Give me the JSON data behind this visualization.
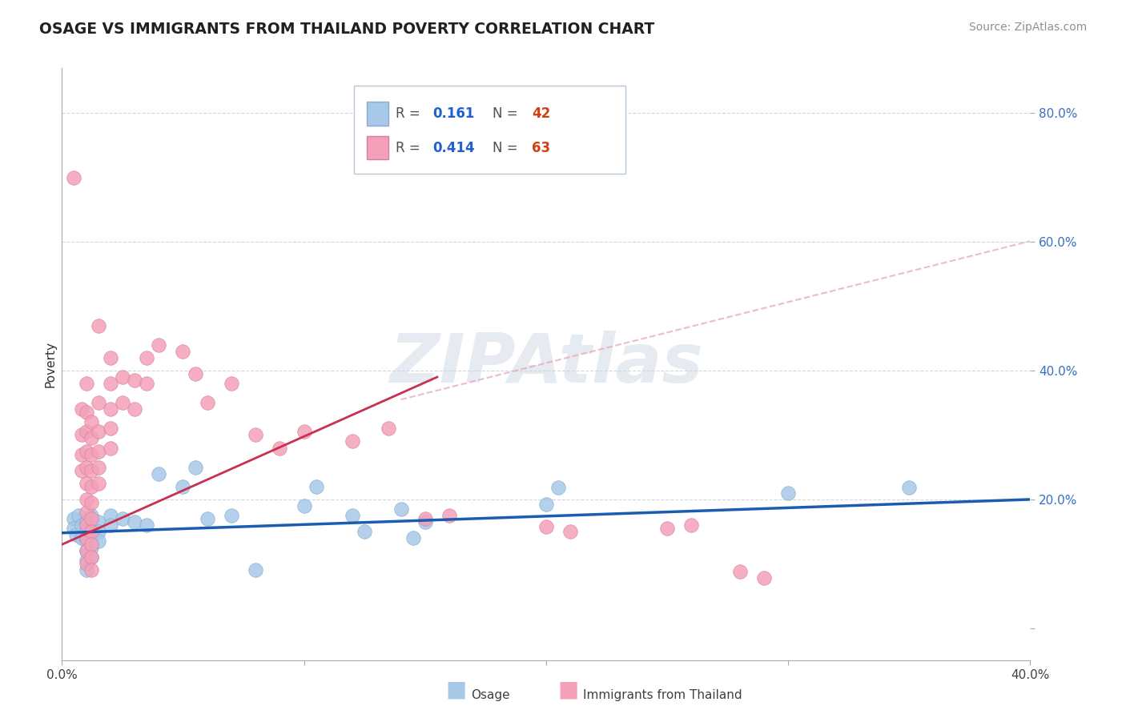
{
  "title": "OSAGE VS IMMIGRANTS FROM THAILAND POVERTY CORRELATION CHART",
  "source": "Source: ZipAtlas.com",
  "ylabel": "Poverty",
  "xlim": [
    0.0,
    0.4
  ],
  "ylim": [
    -0.05,
    0.87
  ],
  "ytick_vals": [
    0.0,
    0.2,
    0.4,
    0.6,
    0.8
  ],
  "xtick_vals": [
    0.0,
    0.1,
    0.2,
    0.3,
    0.4
  ],
  "osage_R": 0.161,
  "osage_N": 42,
  "thailand_R": 0.414,
  "thailand_N": 63,
  "osage_color": "#a8c8e8",
  "thailand_color": "#f4a0b8",
  "osage_line_color": "#1a5cb0",
  "thailand_line_color": "#c83050",
  "grid_color": "#d0d8e0",
  "watermark_color": "#ccd8e4",
  "background_color": "#ffffff",
  "osage_points": [
    [
      0.005,
      0.17
    ],
    [
      0.007,
      0.175
    ],
    [
      0.005,
      0.155
    ],
    [
      0.006,
      0.145
    ],
    [
      0.008,
      0.16
    ],
    [
      0.008,
      0.14
    ],
    [
      0.01,
      0.165
    ],
    [
      0.01,
      0.15
    ],
    [
      0.01,
      0.135
    ],
    [
      0.01,
      0.12
    ],
    [
      0.01,
      0.105
    ],
    [
      0.01,
      0.09
    ],
    [
      0.012,
      0.175
    ],
    [
      0.012,
      0.155
    ],
    [
      0.012,
      0.14
    ],
    [
      0.012,
      0.125
    ],
    [
      0.012,
      0.11
    ],
    [
      0.015,
      0.165
    ],
    [
      0.015,
      0.15
    ],
    [
      0.015,
      0.135
    ],
    [
      0.02,
      0.175
    ],
    [
      0.02,
      0.16
    ],
    [
      0.025,
      0.17
    ],
    [
      0.03,
      0.165
    ],
    [
      0.035,
      0.16
    ],
    [
      0.04,
      0.24
    ],
    [
      0.05,
      0.22
    ],
    [
      0.055,
      0.25
    ],
    [
      0.06,
      0.17
    ],
    [
      0.07,
      0.175
    ],
    [
      0.08,
      0.09
    ],
    [
      0.1,
      0.19
    ],
    [
      0.105,
      0.22
    ],
    [
      0.12,
      0.175
    ],
    [
      0.125,
      0.15
    ],
    [
      0.14,
      0.185
    ],
    [
      0.145,
      0.14
    ],
    [
      0.15,
      0.165
    ],
    [
      0.2,
      0.192
    ],
    [
      0.205,
      0.218
    ],
    [
      0.3,
      0.21
    ],
    [
      0.35,
      0.218
    ]
  ],
  "thailand_points": [
    [
      0.005,
      0.7
    ],
    [
      0.008,
      0.34
    ],
    [
      0.008,
      0.3
    ],
    [
      0.008,
      0.27
    ],
    [
      0.008,
      0.245
    ],
    [
      0.01,
      0.38
    ],
    [
      0.01,
      0.335
    ],
    [
      0.01,
      0.305
    ],
    [
      0.01,
      0.275
    ],
    [
      0.01,
      0.25
    ],
    [
      0.01,
      0.225
    ],
    [
      0.01,
      0.2
    ],
    [
      0.01,
      0.18
    ],
    [
      0.01,
      0.16
    ],
    [
      0.01,
      0.14
    ],
    [
      0.01,
      0.12
    ],
    [
      0.01,
      0.1
    ],
    [
      0.012,
      0.32
    ],
    [
      0.012,
      0.295
    ],
    [
      0.012,
      0.27
    ],
    [
      0.012,
      0.245
    ],
    [
      0.012,
      0.22
    ],
    [
      0.012,
      0.195
    ],
    [
      0.012,
      0.17
    ],
    [
      0.012,
      0.15
    ],
    [
      0.012,
      0.13
    ],
    [
      0.012,
      0.11
    ],
    [
      0.012,
      0.09
    ],
    [
      0.015,
      0.47
    ],
    [
      0.015,
      0.35
    ],
    [
      0.015,
      0.305
    ],
    [
      0.015,
      0.275
    ],
    [
      0.015,
      0.25
    ],
    [
      0.015,
      0.225
    ],
    [
      0.02,
      0.42
    ],
    [
      0.02,
      0.38
    ],
    [
      0.02,
      0.34
    ],
    [
      0.02,
      0.31
    ],
    [
      0.02,
      0.28
    ],
    [
      0.025,
      0.39
    ],
    [
      0.025,
      0.35
    ],
    [
      0.03,
      0.385
    ],
    [
      0.03,
      0.34
    ],
    [
      0.035,
      0.42
    ],
    [
      0.035,
      0.38
    ],
    [
      0.04,
      0.44
    ],
    [
      0.05,
      0.43
    ],
    [
      0.055,
      0.395
    ],
    [
      0.06,
      0.35
    ],
    [
      0.07,
      0.38
    ],
    [
      0.08,
      0.3
    ],
    [
      0.09,
      0.28
    ],
    [
      0.1,
      0.305
    ],
    [
      0.12,
      0.29
    ],
    [
      0.135,
      0.31
    ],
    [
      0.15,
      0.17
    ],
    [
      0.16,
      0.175
    ],
    [
      0.2,
      0.158
    ],
    [
      0.21,
      0.15
    ],
    [
      0.25,
      0.155
    ],
    [
      0.26,
      0.16
    ],
    [
      0.28,
      0.088
    ],
    [
      0.29,
      0.078
    ]
  ]
}
